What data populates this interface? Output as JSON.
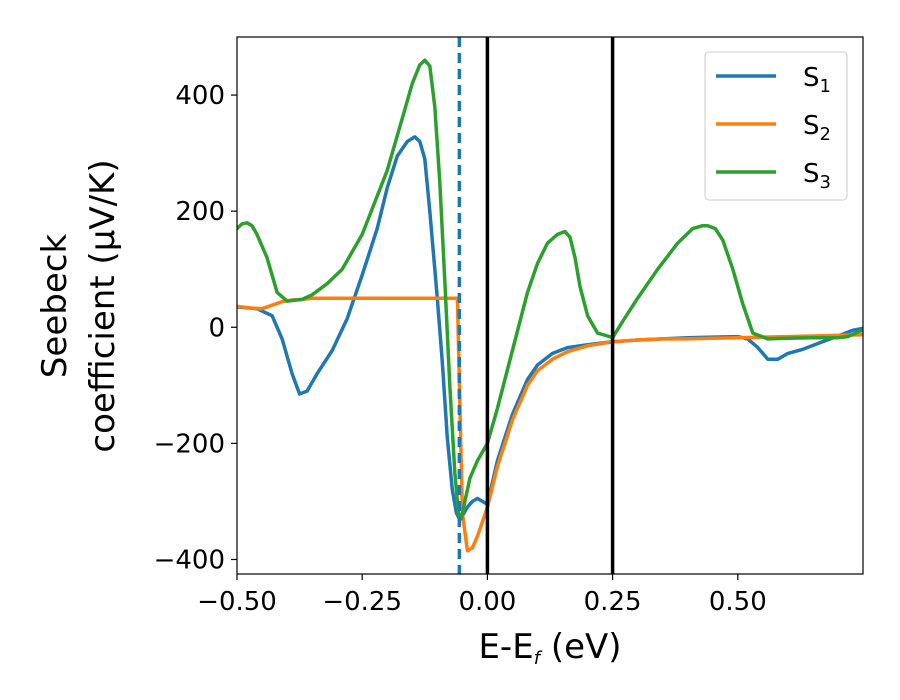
{
  "chart_data": {
    "type": "line",
    "xlabel": {
      "main": "E-E",
      "sub": "f",
      "unit": " (eV)"
    },
    "ylabel": {
      "line1": "Seebeck",
      "line2": "coefficient  (μV/K)"
    },
    "xlim": [
      -0.5,
      0.75
    ],
    "ylim": [
      -425,
      500
    ],
    "xticks": [
      -0.5,
      -0.25,
      0.0,
      0.25,
      0.5
    ],
    "xtick_labels": [
      "−0.50",
      "−0.25",
      "0.00",
      "0.25",
      "0.50"
    ],
    "yticks": [
      -400,
      -200,
      0,
      200,
      400
    ],
    "ytick_labels": [
      "−400",
      "−200",
      "0",
      "200",
      "400"
    ],
    "grid": false,
    "legend_position": "top-right",
    "series": [
      {
        "name": "S1",
        "label_main": "S",
        "label_sub": "1",
        "color": "#1f77b4",
        "x": [
          -0.5,
          -0.46,
          -0.43,
          -0.41,
          -0.39,
          -0.375,
          -0.36,
          -0.34,
          -0.31,
          -0.28,
          -0.25,
          -0.22,
          -0.2,
          -0.18,
          -0.16,
          -0.145,
          -0.135,
          -0.125,
          -0.115,
          -0.1,
          -0.09,
          -0.08,
          -0.07,
          -0.062,
          -0.056,
          -0.05,
          -0.04,
          -0.03,
          -0.02,
          -0.01,
          0.0,
          0.02,
          0.05,
          0.08,
          0.1,
          0.13,
          0.16,
          0.2,
          0.25,
          0.3,
          0.35,
          0.4,
          0.45,
          0.5,
          0.52,
          0.54,
          0.56,
          0.58,
          0.6,
          0.63,
          0.66,
          0.7,
          0.73,
          0.75
        ],
        "y": [
          35,
          32,
          20,
          -20,
          -80,
          -115,
          -110,
          -80,
          -40,
          15,
          90,
          170,
          240,
          295,
          320,
          328,
          320,
          290,
          200,
          50,
          -60,
          -190,
          -280,
          -320,
          -330,
          -325,
          -310,
          -300,
          -295,
          -300,
          -305,
          -230,
          -150,
          -90,
          -65,
          -45,
          -35,
          -30,
          -25,
          -22,
          -20,
          -18,
          -17,
          -16,
          -20,
          -35,
          -55,
          -55,
          -45,
          -38,
          -28,
          -15,
          -5,
          -2
        ]
      },
      {
        "name": "S2",
        "label_main": "S",
        "label_sub": "2",
        "color": "#ff7f0e",
        "x": [
          -0.5,
          -0.47,
          -0.45,
          -0.43,
          -0.41,
          -0.39,
          -0.37,
          -0.35,
          -0.3,
          -0.25,
          -0.2,
          -0.15,
          -0.1,
          -0.07,
          -0.06,
          -0.05,
          -0.04,
          -0.03,
          -0.02,
          -0.01,
          0.0,
          0.02,
          0.05,
          0.08,
          0.1,
          0.13,
          0.16,
          0.2,
          0.25,
          0.3,
          0.35,
          0.4,
          0.45,
          0.5,
          0.55,
          0.6,
          0.65,
          0.7,
          0.75
        ],
        "y": [
          36,
          33,
          32,
          38,
          44,
          47,
          48,
          50,
          50,
          50,
          50,
          50,
          50,
          50,
          50,
          -320,
          -385,
          -380,
          -360,
          -335,
          -310,
          -240,
          -160,
          -100,
          -75,
          -55,
          -42,
          -32,
          -25,
          -22,
          -20,
          -20,
          -19,
          -18,
          -17,
          -16,
          -15,
          -14,
          -13
        ]
      },
      {
        "name": "S3",
        "label_main": "S",
        "label_sub": "3",
        "color": "#2ca02c",
        "x": [
          -0.5,
          -0.49,
          -0.48,
          -0.47,
          -0.46,
          -0.44,
          -0.42,
          -0.4,
          -0.37,
          -0.35,
          -0.32,
          -0.29,
          -0.25,
          -0.2,
          -0.17,
          -0.15,
          -0.135,
          -0.125,
          -0.115,
          -0.105,
          -0.095,
          -0.085,
          -0.075,
          -0.065,
          -0.058,
          -0.052,
          -0.045,
          -0.035,
          -0.02,
          0.0,
          0.02,
          0.05,
          0.08,
          0.1,
          0.12,
          0.14,
          0.155,
          0.165,
          0.175,
          0.185,
          0.2,
          0.22,
          0.24,
          0.25,
          0.27,
          0.3,
          0.34,
          0.38,
          0.41,
          0.43,
          0.44,
          0.455,
          0.47,
          0.49,
          0.51,
          0.53,
          0.56,
          0.6,
          0.65,
          0.7,
          0.72,
          0.74,
          0.75
        ],
        "y": [
          170,
          178,
          180,
          175,
          160,
          120,
          60,
          45,
          48,
          56,
          75,
          100,
          160,
          270,
          360,
          420,
          452,
          460,
          450,
          380,
          250,
          80,
          -100,
          -250,
          -320,
          -330,
          -300,
          -260,
          -230,
          -200,
          -140,
          -40,
          60,
          110,
          145,
          160,
          165,
          155,
          120,
          70,
          20,
          -10,
          -15,
          -18,
          10,
          50,
          100,
          145,
          170,
          175,
          175,
          170,
          150,
          100,
          40,
          -10,
          -20,
          -19,
          -18,
          -18,
          -16,
          -8,
          -5
        ]
      }
    ],
    "vlines": [
      {
        "x": -0.056,
        "color": "#1f77b4",
        "style": "dashed"
      },
      {
        "x": 0.0,
        "color": "#000000",
        "style": "solid"
      },
      {
        "x": 0.25,
        "color": "#000000",
        "style": "solid"
      }
    ]
  }
}
